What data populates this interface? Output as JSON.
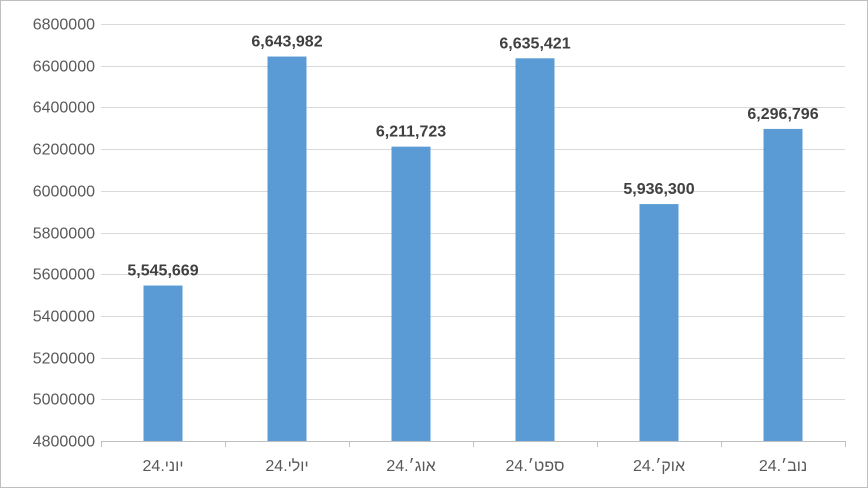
{
  "chart_data": {
    "type": "bar",
    "categories": [
      "יוני.24",
      "יולי.24",
      "אוג׳.24",
      "ספט׳.24",
      "אוק׳.24",
      "נוב׳.24"
    ],
    "values": [
      5545669,
      6643982,
      6211723,
      6635421,
      5936300,
      6296796
    ],
    "data_labels": [
      "5,545,669",
      "6,643,982",
      "6,211,723",
      "6,635,421",
      "5,936,300",
      "6,296,796"
    ],
    "ylim": [
      4800000,
      6800000
    ],
    "yticks": [
      4800000,
      5000000,
      5200000,
      5400000,
      5600000,
      5800000,
      6000000,
      6200000,
      6400000,
      6600000,
      6800000
    ],
    "ytick_labels": [
      "4800000",
      "5000000",
      "5200000",
      "5400000",
      "5600000",
      "5800000",
      "6000000",
      "6200000",
      "6400000",
      "6600000",
      "6800000"
    ],
    "grid": true,
    "legend": "none",
    "title": "",
    "xlabel": "",
    "ylabel": "",
    "colors": {
      "bar": "#5b9bd5",
      "grid": "#d9d9d9",
      "axis": "#bfbfbf",
      "tick_text": "#595959",
      "label_text": "#404040"
    }
  }
}
